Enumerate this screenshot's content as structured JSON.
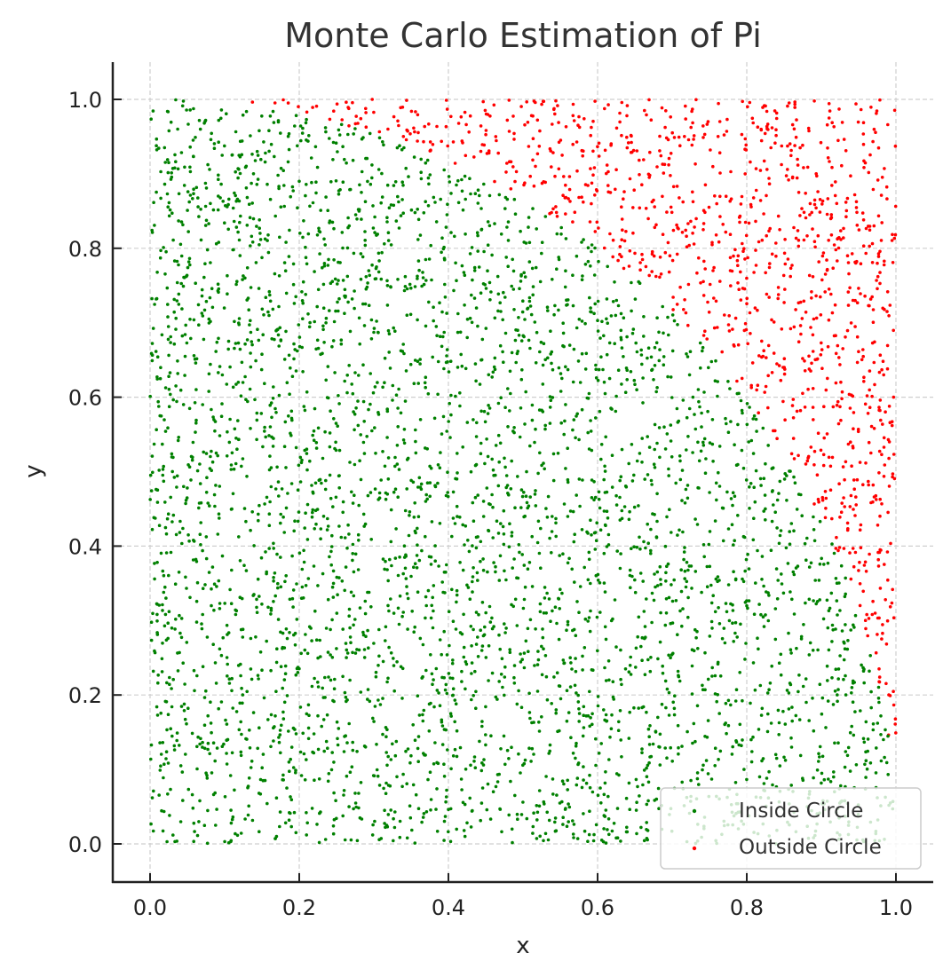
{
  "chart_data": {
    "type": "scatter",
    "title": "Monte Carlo Estimation of Pi",
    "xlabel": "x",
    "ylabel": "y",
    "xlim": [
      -0.05,
      1.05
    ],
    "ylim": [
      -0.05,
      1.05
    ],
    "xticks": [
      "0.0",
      "0.2",
      "0.4",
      "0.6",
      "0.8",
      "1.0"
    ],
    "yticks": [
      "0.0",
      "0.2",
      "0.4",
      "0.6",
      "0.8",
      "1.0"
    ],
    "grid": true,
    "legend_position": "lower right",
    "num_points": 5000,
    "series": [
      {
        "name": "Inside Circle",
        "color": "#008000",
        "rule": "x^2 + y^2 <= 1"
      },
      {
        "name": "Outside Circle",
        "color": "#ff0000",
        "rule": "x^2 + y^2 > 1"
      }
    ]
  }
}
